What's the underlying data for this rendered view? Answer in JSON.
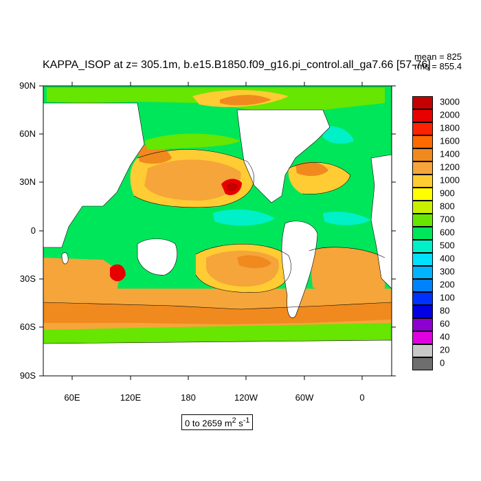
{
  "title": "KAPPA_ISOP at z= 305.1m, b.e15.B1850.f09_g16.pi_control.all_ga7.66 [57-76]",
  "stats": {
    "mean": "mean = 825",
    "rms": "rms = 855.4"
  },
  "range_label": {
    "text": "0 to 2659 m",
    "sup": "2",
    "unit": " s",
    "unit_sup": "-1"
  },
  "lat_labels": [
    "90N",
    "60N",
    "30N",
    "0",
    "30S",
    "60S",
    "90S"
  ],
  "lon_labels": [
    "60E",
    "120E",
    "180",
    "120W",
    "60W",
    "0"
  ],
  "legend": {
    "levels": [
      "3000",
      "2000",
      "1800",
      "1600",
      "1400",
      "1200",
      "1000",
      "900",
      "800",
      "700",
      "600",
      "500",
      "400",
      "300",
      "200",
      "100",
      "80",
      "60",
      "40",
      "20",
      "0"
    ],
    "colors": [
      "#c40000",
      "#e80000",
      "#ff2200",
      "#ff6a00",
      "#f08a1e",
      "#f5a53a",
      "#ffcc33",
      "#ffff00",
      "#c8f000",
      "#66e600",
      "#00e65a",
      "#00f0c8",
      "#00e0ff",
      "#00b4ff",
      "#0082ff",
      "#0032ff",
      "#0000e0",
      "#8c00d2",
      "#e000e0",
      "#c8c8c8",
      "#6e6e6e"
    ]
  },
  "colors": {
    "ocean_base": "#00e65a",
    "warm_high": "#f08a1e",
    "warm_mid": "#f5a53a",
    "yellow": "#ffff00",
    "cyan": "#00f0c8",
    "peak": "#c40000",
    "land": "#ffffff"
  }
}
